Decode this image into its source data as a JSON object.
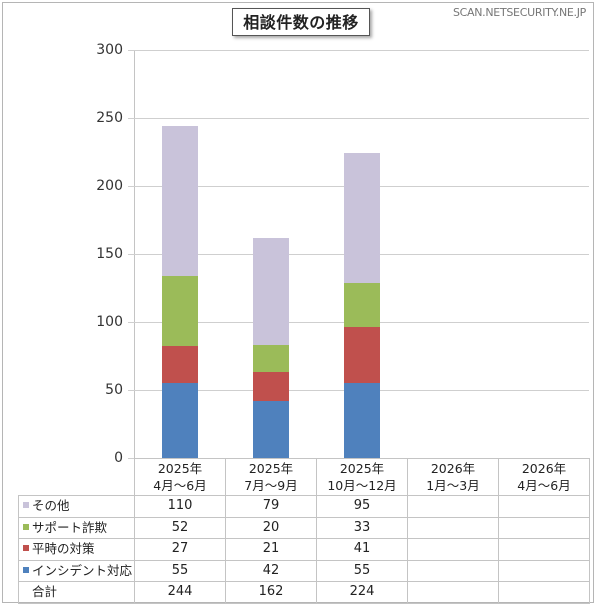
{
  "title": "相談件数の推移",
  "source": "SCAN.NETSECURITY.NE.JP",
  "yaxis": {
    "ticks": [
      "300",
      "250",
      "200",
      "150",
      "100",
      "50",
      "0"
    ]
  },
  "categories": [
    {
      "year": "2025年",
      "period": "4月〜6月"
    },
    {
      "year": "2025年",
      "period": "7月〜9月"
    },
    {
      "year": "2025年",
      "period": "10月〜12月"
    },
    {
      "year": "2026年",
      "period": "1月〜3月"
    },
    {
      "year": "2026年",
      "period": "4月〜6月"
    }
  ],
  "table": {
    "rows": [
      {
        "label": "その他",
        "color": "#c9c3da",
        "values": [
          "110",
          "79",
          "95",
          "",
          ""
        ]
      },
      {
        "label": "サポート詐欺",
        "color": "#9bbb59",
        "values": [
          "52",
          "20",
          "33",
          "",
          ""
        ]
      },
      {
        "label": "平時の対策",
        "color": "#c0504d",
        "values": [
          "27",
          "21",
          "41",
          "",
          ""
        ]
      },
      {
        "label": "インシデント対応",
        "color": "#4f81bd",
        "values": [
          "55",
          "42",
          "55",
          "",
          ""
        ]
      },
      {
        "label": "合計",
        "color": "",
        "values": [
          "244",
          "162",
          "224",
          "",
          ""
        ]
      }
    ]
  },
  "chart_data": {
    "type": "bar",
    "stacked": true,
    "title": "相談件数の推移",
    "xlabel": "",
    "ylabel": "",
    "ylim": [
      0,
      300
    ],
    "yticks": [
      0,
      50,
      100,
      150,
      200,
      250,
      300
    ],
    "grid": true,
    "legend_position": "table-below",
    "categories": [
      "2025年 4月〜6月",
      "2025年 7月〜9月",
      "2025年 10月〜12月",
      "2026年 1月〜3月",
      "2026年 4月〜6月"
    ],
    "series": [
      {
        "name": "インシデント対応",
        "color": "#4f81bd",
        "values": [
          55,
          42,
          55,
          null,
          null
        ]
      },
      {
        "name": "平時の対策",
        "color": "#c0504d",
        "values": [
          27,
          21,
          41,
          null,
          null
        ]
      },
      {
        "name": "サポート詐欺",
        "color": "#9bbb59",
        "values": [
          52,
          20,
          33,
          null,
          null
        ]
      },
      {
        "name": "その他",
        "color": "#c9c3da",
        "values": [
          110,
          79,
          95,
          null,
          null
        ]
      }
    ],
    "totals": [
      244,
      162,
      224,
      null,
      null
    ],
    "annotations": [
      "SCAN.NETSECURITY.NE.JP"
    ]
  }
}
